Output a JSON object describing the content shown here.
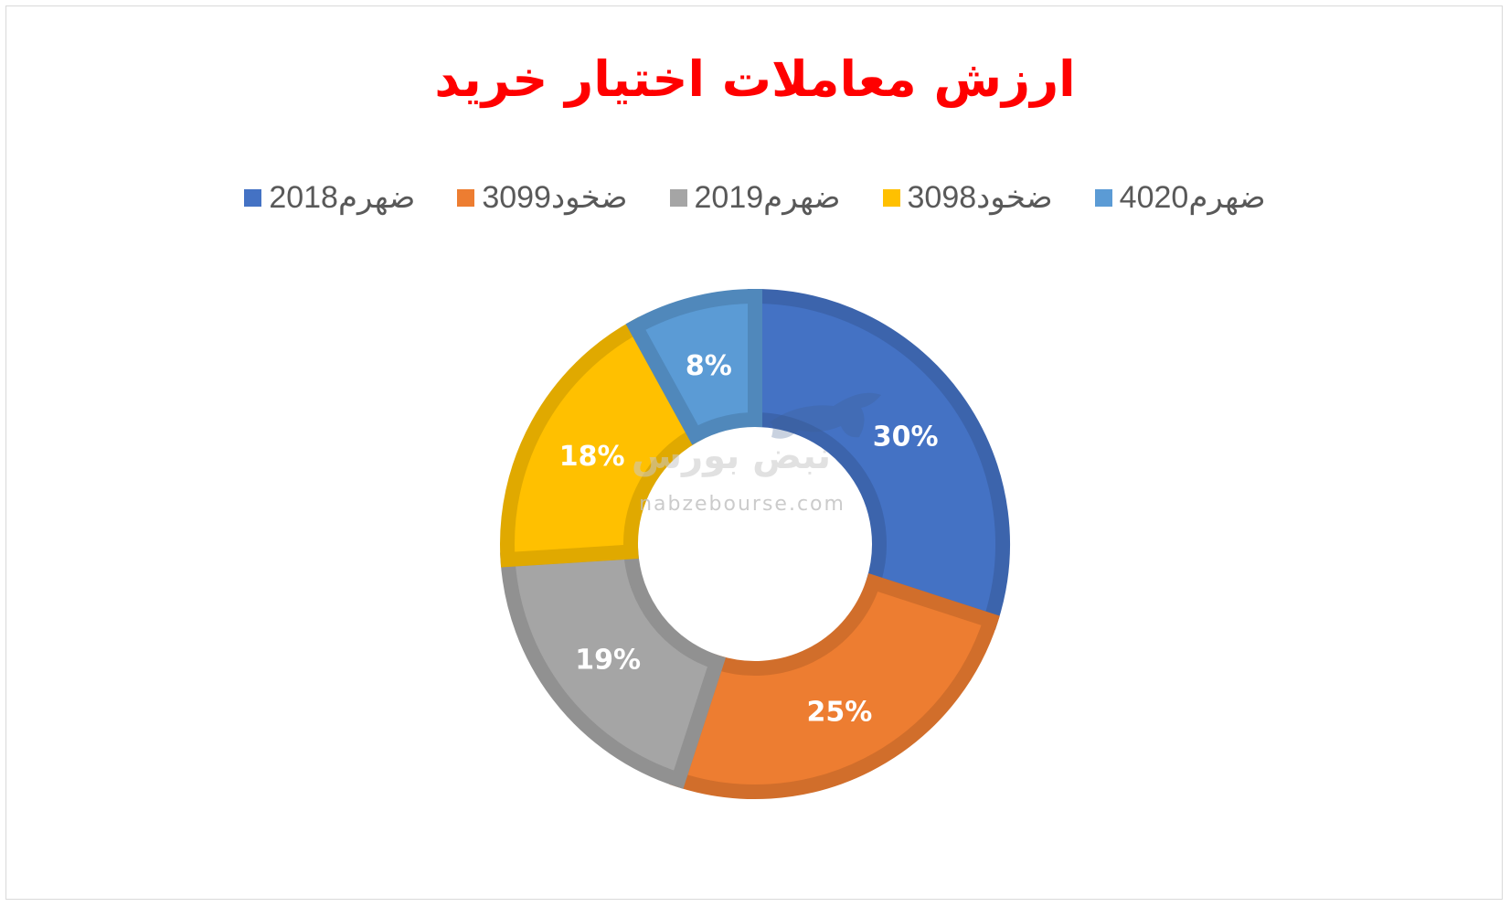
{
  "chart_data": {
    "type": "pie",
    "title": "ارزش معاملات اختیار خرید",
    "donut": true,
    "legend_position": "top",
    "slices": [
      {
        "label": "ضهرم2018",
        "value": 30,
        "data_label": "30%",
        "color": "#4472C4"
      },
      {
        "label": "ضخود3099",
        "value": 25,
        "data_label": "25%",
        "color": "#ED7D31"
      },
      {
        "label": "ضهرم2019",
        "value": 19,
        "data_label": "19%",
        "color": "#A5A5A5"
      },
      {
        "label": "ضخود3098",
        "value": 18,
        "data_label": "18%",
        "color": "#FFC000"
      },
      {
        "label": "ضهرم4020",
        "value": 8,
        "data_label": "8%",
        "color": "#5B9BD5"
      }
    ]
  },
  "watermark": {
    "brand": "نبض بورس",
    "url": "nabzebourse.com",
    "icon": "bull-icon"
  }
}
